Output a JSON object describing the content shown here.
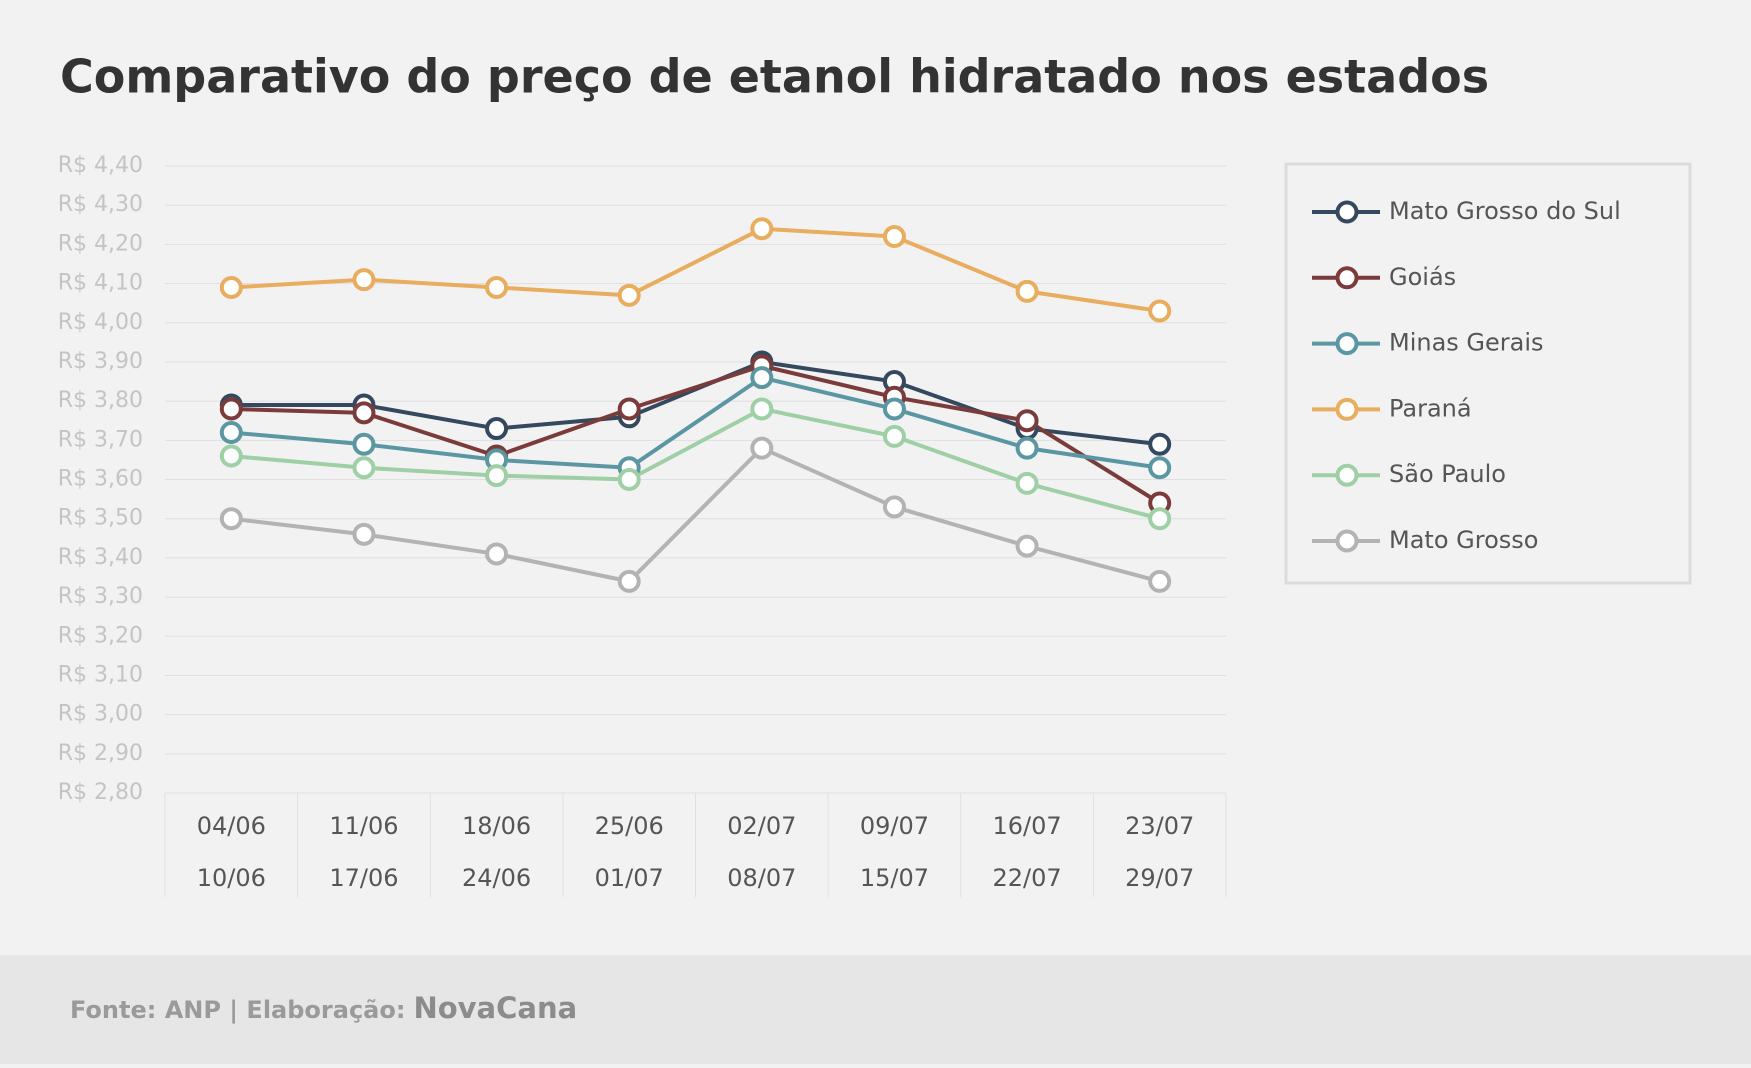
{
  "chart_data": {
    "type": "line",
    "title": "Comparativo do preço de etanol hidratado nos estados",
    "categories": [
      [
        "04/06",
        "10/06"
      ],
      [
        "11/06",
        "17/06"
      ],
      [
        "18/06",
        "24/06"
      ],
      [
        "25/06",
        "01/07"
      ],
      [
        "02/07",
        "08/07"
      ],
      [
        "09/07",
        "15/07"
      ],
      [
        "16/07",
        "22/07"
      ],
      [
        "23/07",
        "29/07"
      ]
    ],
    "series": [
      {
        "name": "Mato Grosso do Sul",
        "color": "#34495e",
        "values": [
          3.79,
          3.79,
          3.73,
          3.76,
          3.9,
          3.85,
          3.73,
          3.69
        ]
      },
      {
        "name": "Goiás",
        "color": "#7b3b3b",
        "values": [
          3.78,
          3.77,
          3.66,
          3.78,
          3.89,
          3.81,
          3.75,
          3.54
        ]
      },
      {
        "name": "Minas Gerais",
        "color": "#5b97a3",
        "values": [
          3.72,
          3.69,
          3.65,
          3.63,
          3.86,
          3.78,
          3.68,
          3.63
        ]
      },
      {
        "name": "Paraná",
        "color": "#e8ad5e",
        "values": [
          4.09,
          4.11,
          4.09,
          4.07,
          4.24,
          4.22,
          4.08,
          4.03
        ]
      },
      {
        "name": "São Paulo",
        "color": "#9fcfa5",
        "values": [
          3.66,
          3.63,
          3.61,
          3.6,
          3.78,
          3.71,
          3.59,
          3.5
        ]
      },
      {
        "name": "Mato Grosso",
        "color": "#b3b3b3",
        "values": [
          3.5,
          3.46,
          3.41,
          3.34,
          3.68,
          3.53,
          3.43,
          3.34
        ]
      }
    ],
    "ylim": [
      2.8,
      4.4
    ],
    "yticks": [
      {
        "value": 2.8,
        "label": "R$ 2,80"
      },
      {
        "value": 2.9,
        "label": "R$ 2,90"
      },
      {
        "value": 3.0,
        "label": "R$ 3,00"
      },
      {
        "value": 3.1,
        "label": "R$ 3,10"
      },
      {
        "value": 3.2,
        "label": "R$ 3,20"
      },
      {
        "value": 3.3,
        "label": "R$ 3,30"
      },
      {
        "value": 3.4,
        "label": "R$ 3,40"
      },
      {
        "value": 3.5,
        "label": "R$ 3,50"
      },
      {
        "value": 3.6,
        "label": "R$ 3,60"
      },
      {
        "value": 3.7,
        "label": "R$ 3,70"
      },
      {
        "value": 3.8,
        "label": "R$ 3,80"
      },
      {
        "value": 3.9,
        "label": "R$ 3,90"
      },
      {
        "value": 4.0,
        "label": "R$ 4,00"
      },
      {
        "value": 4.1,
        "label": "R$ 4,10"
      },
      {
        "value": 4.2,
        "label": "R$ 4,20"
      },
      {
        "value": 4.3,
        "label": "R$ 4,30"
      },
      {
        "value": 4.4,
        "label": "R$ 4,40"
      }
    ],
    "grid": true,
    "legend": "right"
  },
  "footer": {
    "source": "Fonte: ANP | Elaboração:",
    "brand": "NovaCana"
  }
}
